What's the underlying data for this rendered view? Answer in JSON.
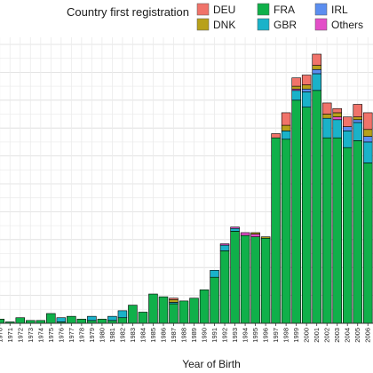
{
  "chart_data": {
    "type": "bar",
    "stacked": true,
    "title": "",
    "xlabel": "Year of Birth",
    "ylabel": "",
    "legend": {
      "title": "Country first registration",
      "placement": "top",
      "entries": [
        "DEU",
        "DNK",
        "FRA",
        "GBR",
        "IRL",
        "Others"
      ]
    },
    "grid": true,
    "categories": [
      "1970",
      "1971",
      "1972",
      "1973",
      "1974",
      "1975",
      "1976",
      "1977",
      "1978",
      "1979",
      "1980",
      "1981",
      "1982",
      "1983",
      "1984",
      "1985",
      "1986",
      "1987",
      "1988",
      "1989",
      "1990",
      "1991",
      "1992",
      "1993",
      "1994",
      "1995",
      "1996",
      "1997",
      "1998",
      "1999",
      "2000",
      "2001",
      "2002",
      "2003",
      "2004",
      "2005",
      "2006"
    ],
    "series": [
      {
        "name": "FRA",
        "color": "#10b04a",
        "values": [
          3,
          1,
          4,
          2,
          2,
          7,
          1,
          5,
          3,
          2,
          3,
          2,
          4,
          13,
          8,
          21,
          19,
          14,
          16,
          18,
          24,
          33,
          52,
          66,
          63,
          62,
          61,
          133,
          132,
          160,
          155,
          167,
          133,
          133,
          126,
          131,
          115
        ]
      },
      {
        "name": "GBR",
        "color": "#1ab2c9",
        "values": [
          0,
          0,
          0,
          0,
          0,
          0,
          3,
          0,
          0,
          3,
          0,
          3,
          5,
          0,
          0,
          0,
          0,
          1,
          0,
          0,
          0,
          5,
          4,
          2,
          0,
          0,
          0,
          0,
          6,
          7,
          11,
          12,
          14,
          13,
          12,
          13,
          15
        ]
      },
      {
        "name": "IRL",
        "color": "#5b8ef0",
        "values": [
          0,
          0,
          0,
          0,
          0,
          0,
          0,
          0,
          0,
          0,
          0,
          0,
          0,
          0,
          0,
          0,
          0,
          0,
          0,
          0,
          0,
          0,
          0,
          0,
          0,
          0,
          0,
          0,
          0,
          0,
          2,
          3,
          0,
          0,
          3,
          2,
          4
        ]
      },
      {
        "name": "Others",
        "color": "#e34fc8",
        "values": [
          0,
          0,
          0,
          0,
          0,
          0,
          0,
          0,
          0,
          0,
          0,
          0,
          0,
          0,
          0,
          0,
          0,
          0,
          0,
          0,
          0,
          0,
          1,
          1,
          2,
          2,
          0,
          0,
          0,
          1,
          0,
          0,
          0,
          2,
          0,
          0,
          0
        ]
      },
      {
        "name": "DNK",
        "color": "#b8a11a",
        "values": [
          0,
          0,
          0,
          0,
          0,
          0,
          0,
          0,
          0,
          0,
          0,
          0,
          0,
          0,
          0,
          0,
          0,
          2,
          0,
          0,
          0,
          0,
          0,
          0,
          0,
          1,
          1,
          0,
          4,
          2,
          3,
          3,
          3,
          3,
          0,
          2,
          5
        ]
      },
      {
        "name": "DEU",
        "color": "#f0736a",
        "values": [
          0,
          0,
          0,
          0,
          0,
          0,
          0,
          0,
          0,
          0,
          0,
          0,
          0,
          0,
          0,
          0,
          0,
          1,
          0,
          0,
          0,
          0,
          0,
          0,
          0,
          0,
          0,
          3,
          9,
          6,
          7,
          8,
          8,
          3,
          7,
          9,
          12
        ]
      }
    ],
    "ylim": [
      0,
      200
    ]
  }
}
